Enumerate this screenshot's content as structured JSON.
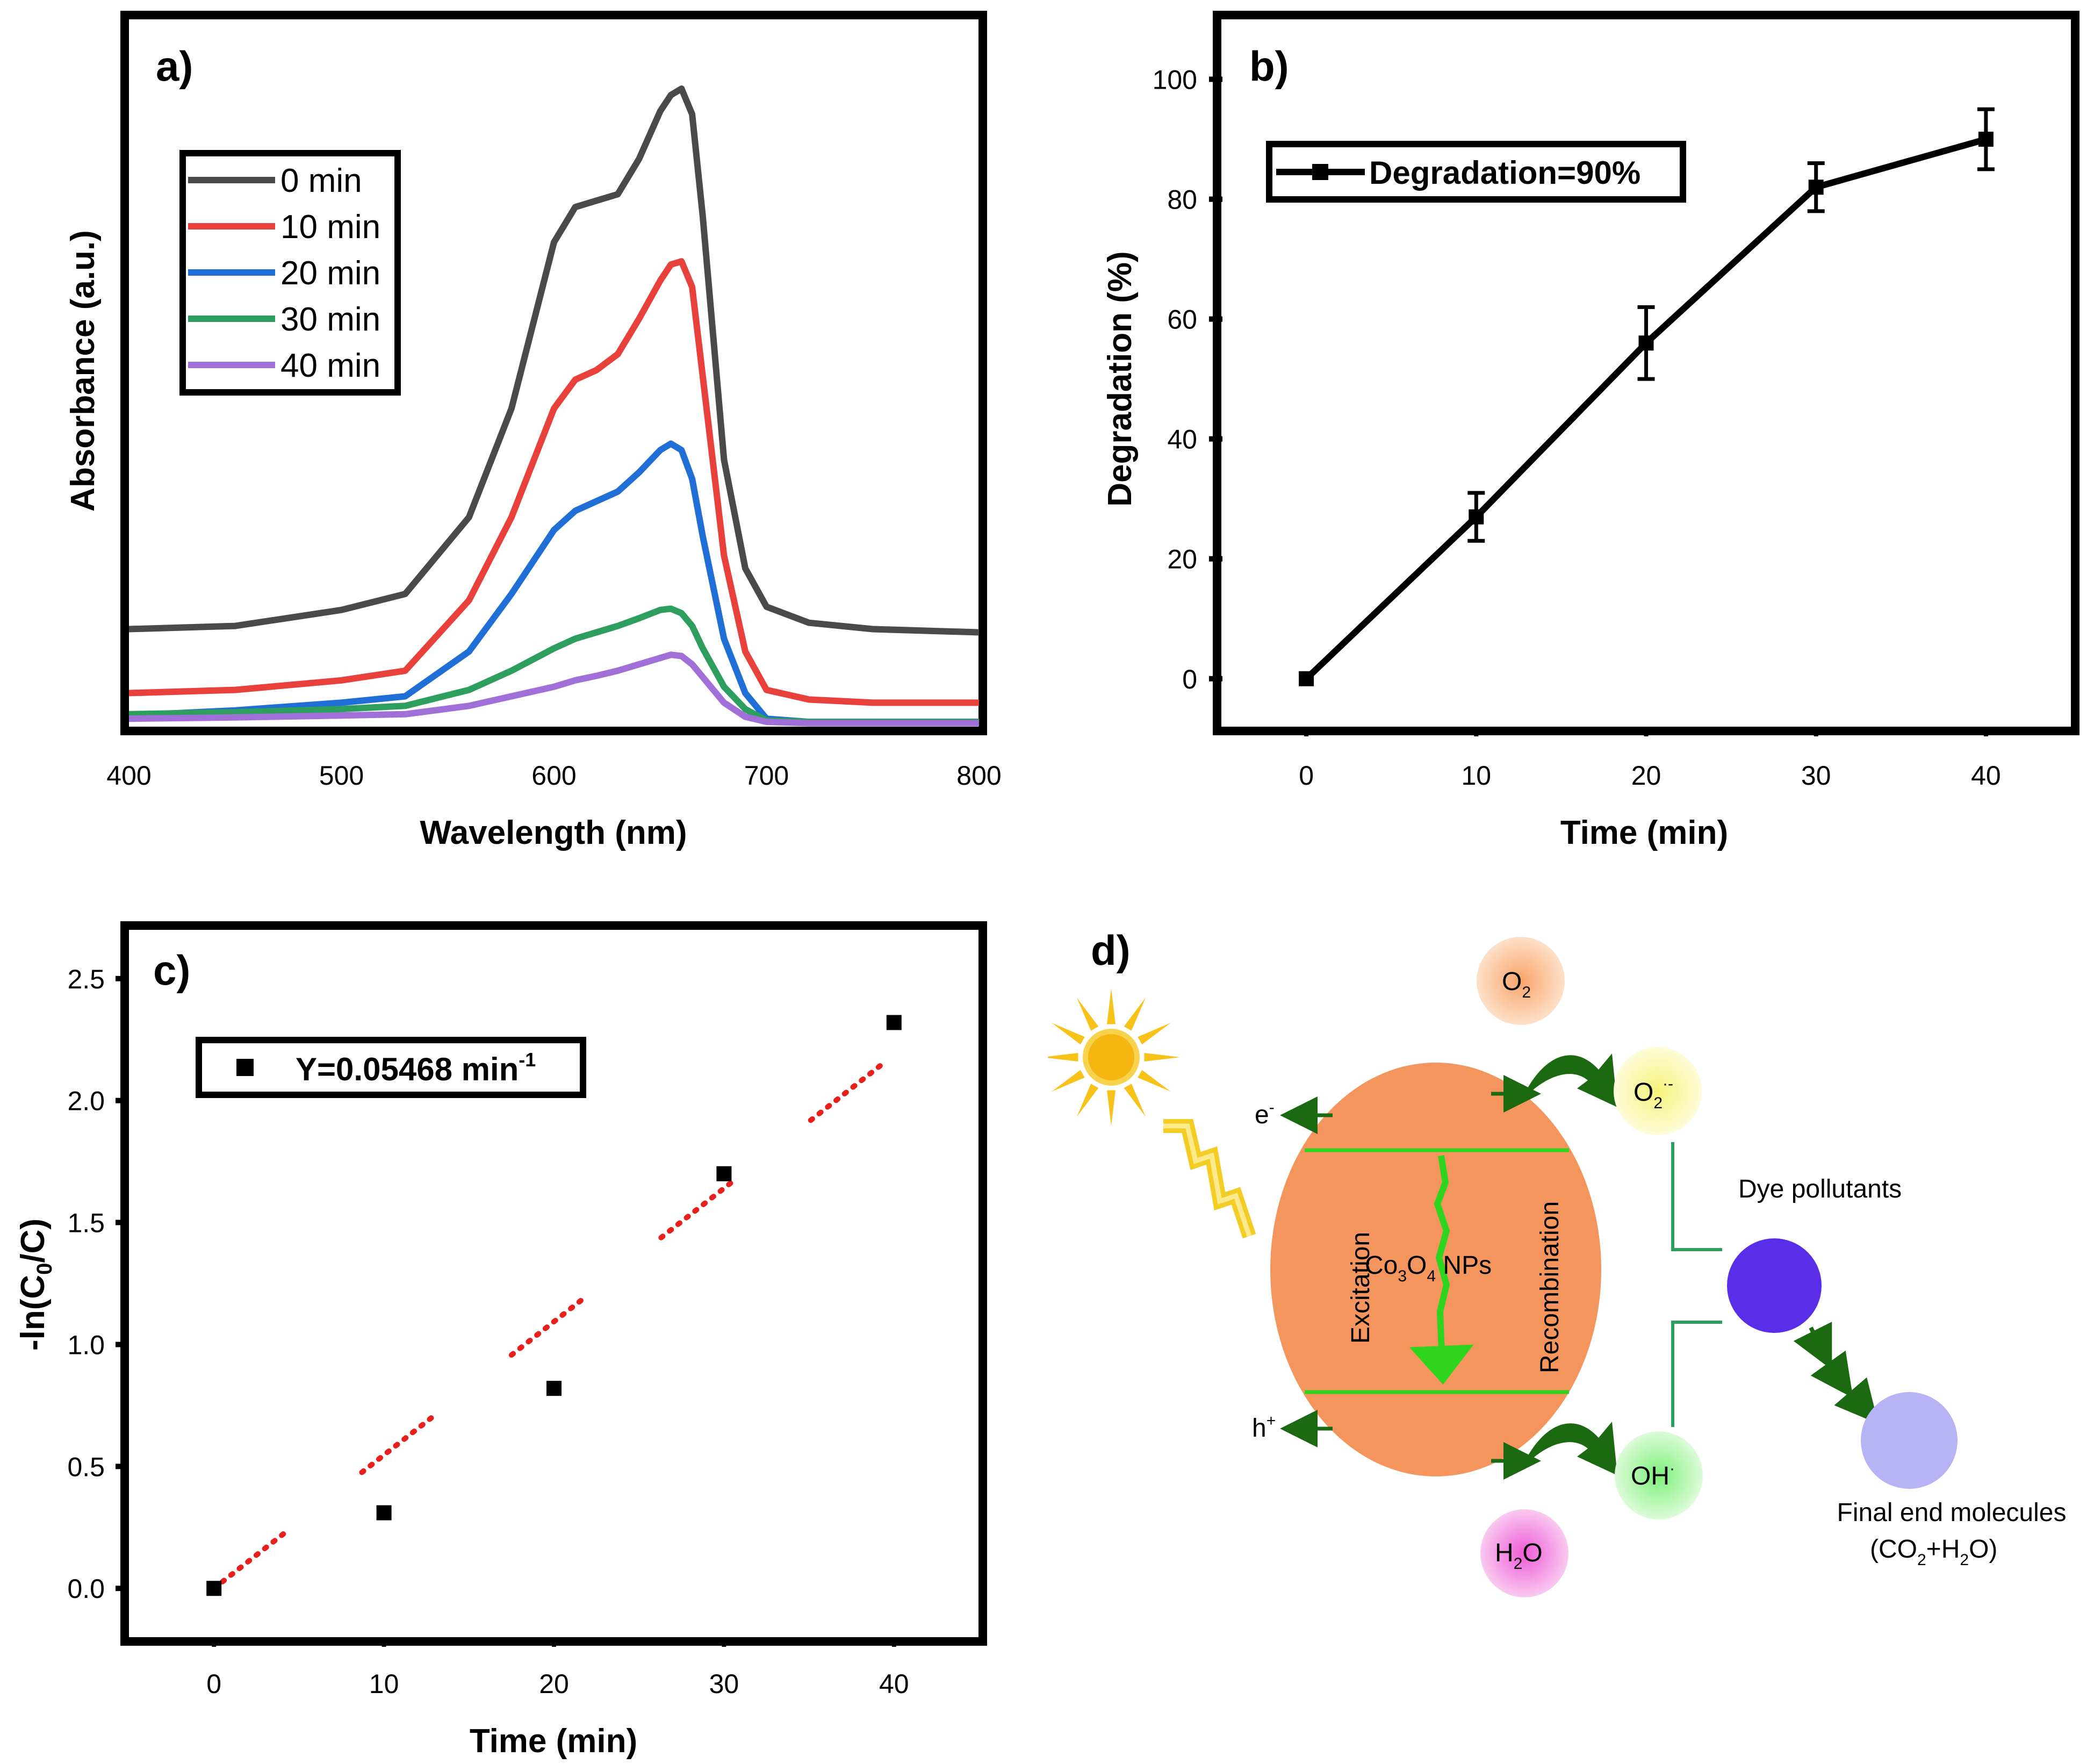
{
  "chart_data": [
    {
      "panel": "a)",
      "type": "line",
      "xlabel": "Wavelength (nm)",
      "ylabel": "Absorbance (a.u.)",
      "xlim": [
        400,
        800
      ],
      "xticks": [
        "400",
        "500",
        "600",
        "700",
        "800"
      ],
      "ylim": [
        0,
        1.0
      ],
      "x": [
        400,
        450,
        500,
        530,
        560,
        580,
        600,
        610,
        620,
        630,
        640,
        650,
        655,
        660,
        665,
        670,
        680,
        690,
        700,
        720,
        750,
        800
      ],
      "series": [
        {
          "name": "0 min",
          "color": "#4a4a4a",
          "values": [
            0.155,
            0.16,
            0.185,
            0.21,
            0.33,
            0.5,
            0.76,
            0.815,
            0.825,
            0.835,
            0.89,
            0.965,
            0.99,
            1.0,
            0.96,
            0.8,
            0.42,
            0.25,
            0.19,
            0.165,
            0.155,
            0.15
          ]
        },
        {
          "name": "10 min",
          "color": "#e8413c",
          "values": [
            0.055,
            0.06,
            0.075,
            0.09,
            0.2,
            0.33,
            0.5,
            0.545,
            0.56,
            0.585,
            0.64,
            0.7,
            0.725,
            0.73,
            0.69,
            0.55,
            0.27,
            0.12,
            0.06,
            0.045,
            0.04,
            0.04
          ]
        },
        {
          "name": "20 min",
          "color": "#1f6fd6",
          "values": [
            0.02,
            0.028,
            0.04,
            0.05,
            0.12,
            0.21,
            0.31,
            0.34,
            0.355,
            0.37,
            0.4,
            0.435,
            0.445,
            0.435,
            0.39,
            0.3,
            0.14,
            0.055,
            0.015,
            0.01,
            0.01,
            0.01
          ]
        },
        {
          "name": "30 min",
          "color": "#2e9e5e",
          "values": [
            0.022,
            0.025,
            0.03,
            0.035,
            0.06,
            0.09,
            0.125,
            0.14,
            0.15,
            0.16,
            0.172,
            0.185,
            0.187,
            0.18,
            0.16,
            0.125,
            0.065,
            0.03,
            0.012,
            0.01,
            0.01,
            0.01
          ]
        },
        {
          "name": "40 min",
          "color": "#a06fd8",
          "values": [
            0.015,
            0.017,
            0.02,
            0.022,
            0.035,
            0.05,
            0.065,
            0.075,
            0.082,
            0.09,
            0.1,
            0.11,
            0.115,
            0.113,
            0.1,
            0.08,
            0.04,
            0.018,
            0.01,
            0.008,
            0.008,
            0.008
          ]
        }
      ]
    },
    {
      "panel": "b)",
      "type": "line",
      "xlabel": "Time (min)",
      "ylabel": "Degradation (%)",
      "xlim": [
        -5,
        45
      ],
      "ylim": [
        -8,
        110
      ],
      "xticks": [
        "0",
        "10",
        "20",
        "30",
        "40"
      ],
      "yticks": [
        "0",
        "20",
        "40",
        "60",
        "80",
        "100"
      ],
      "x": [
        0,
        10,
        20,
        30,
        40
      ],
      "series": [
        {
          "name": "Degradation=90%",
          "values": [
            0,
            27,
            56,
            82,
            90
          ],
          "errors": [
            0,
            4,
            6,
            4,
            5
          ]
        }
      ]
    },
    {
      "panel": "c)",
      "type": "scatter",
      "xlabel": "Time (min)",
      "ylabel": "-ln(C0/C)",
      "xlim": [
        -5,
        45
      ],
      "ylim": [
        -0.2,
        2.7
      ],
      "xticks": [
        "0",
        "10",
        "20",
        "30",
        "40"
      ],
      "yticks": [
        "0.0",
        "0.5",
        "1.0",
        "1.5",
        "2.0",
        "2.5"
      ],
      "x": [
        0,
        10,
        20,
        30,
        40
      ],
      "series": [
        {
          "name": "Y=0.05468 min",
          "name_superscript": "-1",
          "values": [
            0.0,
            0.31,
            0.82,
            1.7,
            2.32
          ]
        }
      ],
      "fit": {
        "slope": 0.05468,
        "intercept": 0.0,
        "x_segments": [
          [
            0,
            4.3
          ],
          [
            8.7,
            13
          ],
          [
            17.5,
            21.8
          ],
          [
            26.3,
            30.6
          ],
          [
            35.1,
            39.4
          ]
        ]
      }
    }
  ],
  "panel_d": {
    "label": "d)",
    "o2": "O",
    "o2_sub": "2",
    "o2rad": "O",
    "o2rad_sub": "2",
    "o2rad_sup": "·-",
    "electron": "e",
    "electron_sup": "-",
    "hole": "h",
    "hole_sup": "+",
    "excitation": "Excitation",
    "recombination": "Recombination",
    "np_label": [
      "Co",
      "3",
      "O",
      "4",
      " NPs"
    ],
    "dye": "Dye pollutants",
    "oh": "OH",
    "oh_sup": "·",
    "h2o": [
      "H",
      "2",
      "O"
    ],
    "final_title": "Final end molecules",
    "final_formula": [
      "(CO",
      "2",
      "+H",
      "2",
      "O)"
    ],
    "colors": {
      "sphere": "#f4955d",
      "band": "#2fd41f",
      "arrow_dark": "#1b6a12",
      "dye": "#5a2ee8",
      "final": "#b7b3f5",
      "sun": "#f7c21a"
    }
  }
}
